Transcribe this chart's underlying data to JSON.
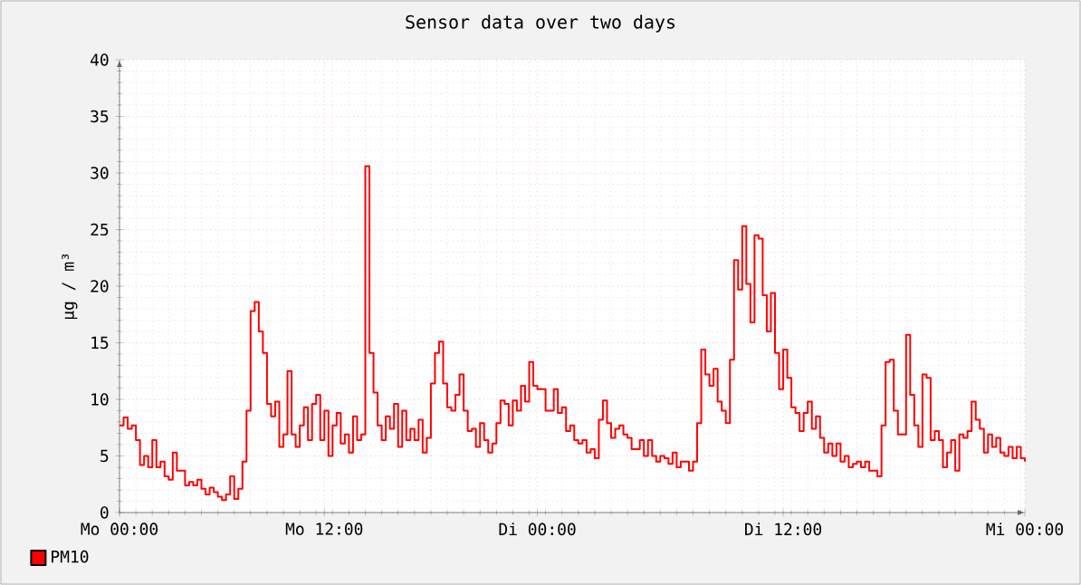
{
  "chart_data": {
    "type": "step",
    "title": "Sensor data over two days",
    "ylabel": "µg / m³",
    "ylim": [
      0,
      40
    ],
    "categories": [
      "Mo 00:00",
      null,
      null,
      null,
      null,
      null,
      null,
      null,
      null,
      null,
      null,
      null,
      null,
      null,
      null,
      null,
      null,
      null,
      null,
      null,
      null,
      null,
      null,
      null,
      null,
      null,
      null,
      null,
      null,
      null,
      null,
      null,
      null,
      null,
      null,
      null,
      null,
      null,
      null,
      null,
      null,
      null,
      null,
      null,
      null,
      null,
      null,
      null,
      null,
      null,
      "Mo 12:00",
      null,
      null,
      null,
      null,
      null,
      null,
      null,
      null,
      null,
      null,
      null,
      null,
      null,
      null,
      null,
      null,
      null,
      null,
      null,
      null,
      null,
      null,
      null,
      null,
      null,
      null,
      null,
      null,
      null,
      null,
      null,
      null,
      null,
      null,
      null,
      null,
      null,
      null,
      null,
      null,
      null,
      null,
      null,
      null,
      null,
      null,
      null,
      null,
      null,
      null,
      null,
      "Di 00:00",
      null,
      null,
      null,
      null,
      null,
      null,
      null,
      null,
      null,
      null,
      null,
      null,
      null,
      null,
      null,
      null,
      null,
      null,
      null,
      null,
      null,
      null,
      null,
      null,
      null,
      null,
      null,
      null,
      null,
      null,
      null,
      null,
      null,
      null,
      null,
      null,
      null,
      null,
      null,
      null,
      null,
      null,
      null,
      null,
      null,
      null,
      null,
      null,
      null,
      null,
      null,
      null,
      null,
      null,
      null,
      null,
      null,
      null,
      null,
      "Di 12:00",
      null,
      null,
      null,
      null,
      null,
      null,
      null,
      null,
      null,
      null,
      null,
      null,
      null,
      null,
      null,
      null,
      null,
      null,
      null,
      null,
      null,
      null,
      null,
      null,
      null,
      null,
      null,
      null,
      null,
      null,
      null,
      null,
      null,
      null,
      null,
      null,
      null,
      null,
      null,
      null,
      null,
      null,
      null,
      null,
      null,
      null,
      null,
      null,
      null,
      null,
      null,
      null,
      null,
      null,
      null,
      null,
      null,
      null,
      "Mi 00:00"
    ],
    "yticks": [
      0,
      5,
      10,
      15,
      20,
      25,
      30,
      35,
      40
    ],
    "grid": true,
    "legend": "bottom left",
    "series": [
      {
        "name": "PM10",
        "color": "#ff0000",
        "values": [
          7.7,
          8.4,
          7.4,
          7.7,
          6.4,
          4.2,
          5.0,
          4.0,
          6.4,
          4.0,
          4.5,
          3.2,
          2.9,
          5.3,
          3.7,
          3.7,
          2.4,
          2.7,
          2.4,
          2.9,
          2.1,
          1.6,
          2.2,
          1.8,
          1.4,
          1.1,
          1.6,
          3.2,
          1.2,
          2.1,
          4.5,
          9.0,
          17.8,
          18.6,
          16.0,
          14.1,
          9.6,
          8.5,
          9.8,
          5.8,
          6.9,
          12.5,
          6.9,
          5.8,
          7.7,
          9.3,
          6.4,
          9.6,
          10.4,
          6.4,
          9.0,
          5.0,
          7.7,
          8.8,
          6.1,
          6.9,
          5.3,
          8.5,
          6.4,
          6.9,
          30.6,
          14.1,
          10.6,
          7.7,
          6.4,
          8.5,
          7.4,
          9.6,
          5.8,
          9.0,
          6.4,
          7.4,
          6.4,
          8.2,
          5.3,
          6.6,
          11.4,
          14.1,
          15.1,
          11.4,
          9.3,
          9.0,
          10.4,
          12.2,
          9.0,
          7.2,
          7.4,
          5.8,
          7.9,
          6.4,
          5.3,
          6.1,
          7.9,
          9.9,
          9.6,
          7.7,
          9.9,
          9.0,
          11.2,
          9.8,
          13.3,
          11.2,
          10.9,
          10.9,
          9.0,
          9.0,
          10.9,
          8.8,
          9.3,
          7.2,
          7.7,
          6.4,
          6.1,
          6.4,
          5.3,
          5.6,
          4.8,
          8.2,
          9.9,
          7.9,
          6.6,
          7.4,
          7.7,
          6.9,
          6.6,
          5.6,
          5.6,
          6.4,
          5.0,
          6.4,
          5.0,
          4.5,
          5.0,
          4.8,
          4.3,
          5.3,
          4.0,
          4.5,
          4.5,
          3.7,
          4.5,
          7.9,
          14.4,
          12.2,
          11.2,
          12.7,
          9.8,
          9.0,
          7.9,
          13.5,
          22.3,
          19.7,
          25.3,
          20.2,
          16.8,
          24.5,
          24.2,
          19.2,
          16.0,
          19.4,
          14.1,
          10.9,
          14.4,
          11.9,
          9.3,
          8.8,
          7.2,
          8.8,
          9.8,
          7.4,
          8.5,
          6.6,
          5.3,
          6.1,
          5.0,
          6.1,
          4.5,
          5.0,
          4.0,
          4.3,
          4.5,
          4.0,
          4.5,
          3.7,
          3.7,
          3.2,
          7.7,
          13.3,
          13.5,
          9.0,
          6.9,
          6.9,
          15.7,
          10.4,
          7.7,
          5.8,
          12.2,
          11.9,
          6.4,
          7.2,
          6.4,
          4.0,
          5.3,
          6.4,
          3.7,
          6.9,
          6.6,
          7.2,
          9.8,
          8.2,
          7.4,
          5.3,
          6.9,
          5.8,
          6.6,
          5.3,
          5.0,
          5.8,
          4.8,
          5.8,
          4.8,
          4.5
        ]
      }
    ]
  }
}
